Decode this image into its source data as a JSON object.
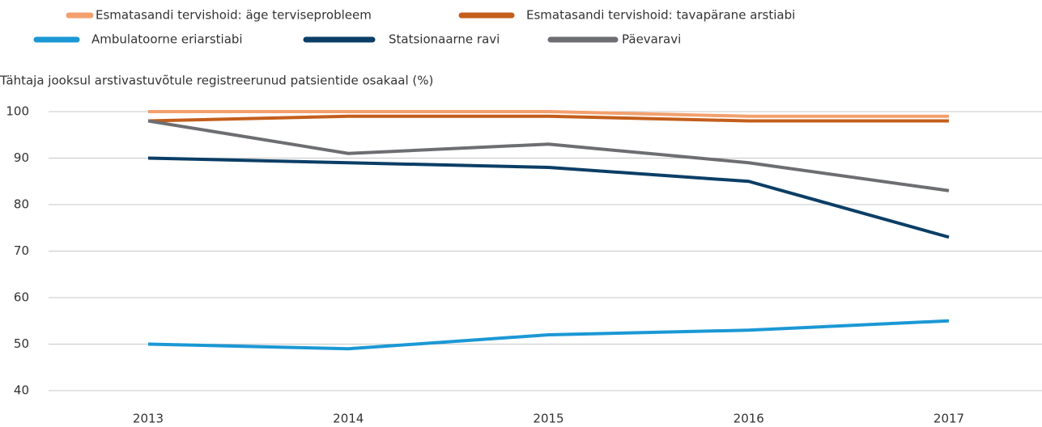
{
  "chart_data": {
    "type": "line",
    "y_label": "Tähtaja jooksul arstivastuvõtule registreerunud patsientide osakaal (%)",
    "categories": [
      "2013",
      "2014",
      "2015",
      "2016",
      "2017"
    ],
    "series": [
      {
        "name": "Esmatasandi tervishoid: äge terviseprobleem",
        "color": "#f3a06e",
        "values": [
          100,
          100,
          100,
          99,
          99
        ]
      },
      {
        "name": "Esmatasandi tervishoid: tavapärane arstiabi",
        "color": "#c45e1c",
        "values": [
          98,
          99,
          99,
          98,
          98
        ]
      },
      {
        "name": "Ambulatoorne eriarstiabi",
        "color": "#1b98d5",
        "values": [
          50,
          49,
          52,
          53,
          55
        ]
      },
      {
        "name": "Statsionaarne ravi",
        "color": "#0b3e66",
        "values": [
          90,
          89,
          88,
          85,
          73
        ]
      },
      {
        "name": "Päevaravi",
        "color": "#6d6e71",
        "values": [
          98,
          91,
          93,
          89,
          83
        ]
      }
    ],
    "ylim": [
      40,
      100
    ],
    "yticks": [
      40,
      50,
      60,
      70,
      80,
      90,
      100
    ],
    "grid": true
  }
}
